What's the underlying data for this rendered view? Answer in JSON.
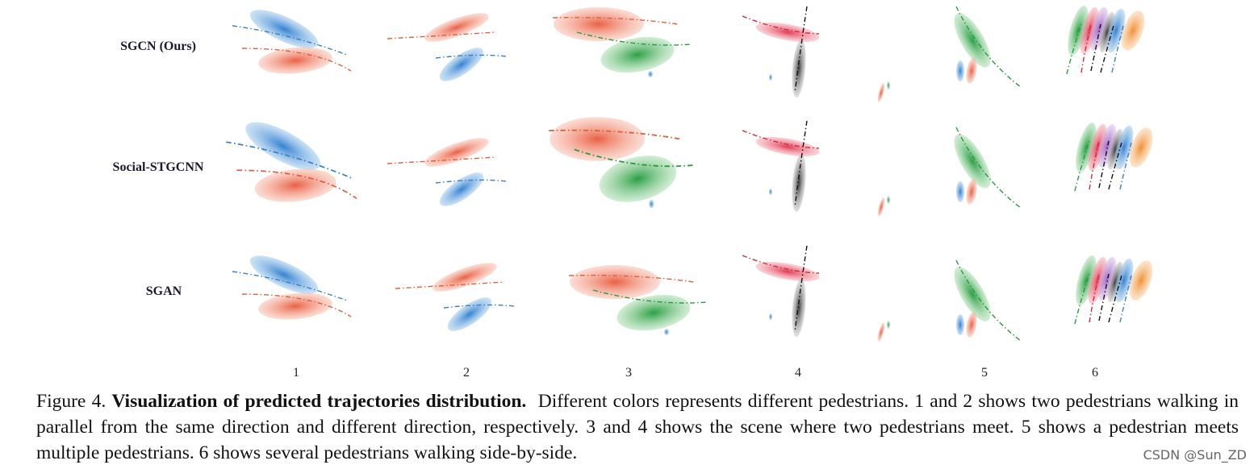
{
  "figure": {
    "rows": [
      "SGCN (Ours)",
      "Social-STGCNN",
      "SGAN"
    ],
    "columns": [
      "1",
      "2",
      "3",
      "4",
      "5",
      "6"
    ],
    "caption": {
      "label": "Figure 4.",
      "bold": "Visualization of predicted trajectories distribution.",
      "text": "Different colors represents different pedestrians. 1 and 2 shows two pedestrians walking in parallel from the same direction and different direction, respectively. 3 and 4 shows the scene where two pedestrians meet. 5 shows a pedestrian meets multiple pedestrians. 6 shows several pedestrians walking side-by-side."
    },
    "watermark": "CSDN @Sun_ZD"
  }
}
